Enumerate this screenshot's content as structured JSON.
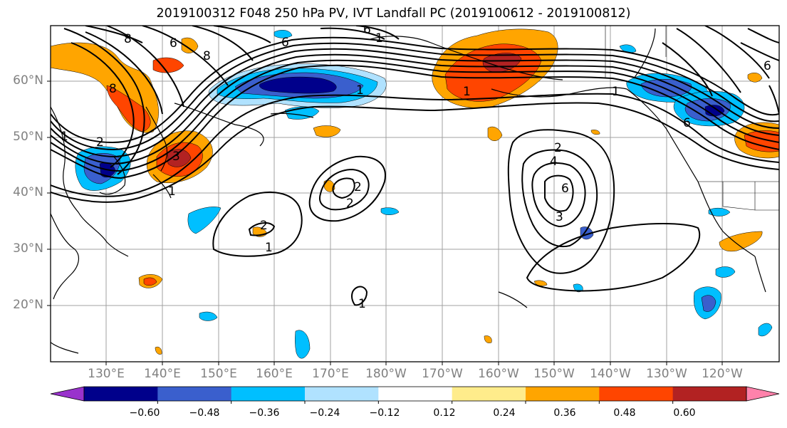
{
  "title": "2019100312 F048 250 hPa PV, IVT Landfall PC (2019100612 - 2019100812)",
  "lat_labels": [
    "60°N",
    "50°N",
    "40°N",
    "30°N",
    "20°N"
  ],
  "lon_labels": [
    "130°E",
    "140°E",
    "150°E",
    "160°E",
    "170°E",
    "180°W",
    "170°W",
    "160°W",
    "150°W",
    "140°W",
    "130°W",
    "120°W"
  ],
  "colorbar": {
    "colors": [
      "#9932cc",
      "#00008b",
      "#3a5fcd",
      "#00bfff",
      "#b0e2ff",
      "#ffffff",
      "#ffec8b",
      "#ffa500",
      "#ff4500",
      "#b22222",
      "#ff82ab"
    ],
    "tick_labels": [
      "−0.60",
      "−0.48",
      "−0.36",
      "−0.24",
      "−0.12",
      "0.12",
      "0.24",
      "0.36",
      "0.48",
      "0.60"
    ]
  },
  "contour_labels": [
    "8",
    "6",
    "8",
    "6",
    "8",
    "6",
    "1",
    "1",
    "1",
    "2",
    "3",
    "2",
    "2",
    "1",
    "2",
    "1",
    "1",
    "2",
    "3",
    "6",
    "4",
    "1",
    "6",
    "6",
    "1"
  ],
  "map_colors": {
    "land_line": "#000000",
    "grid": "#a0a0a0",
    "contour": "#000000"
  }
}
